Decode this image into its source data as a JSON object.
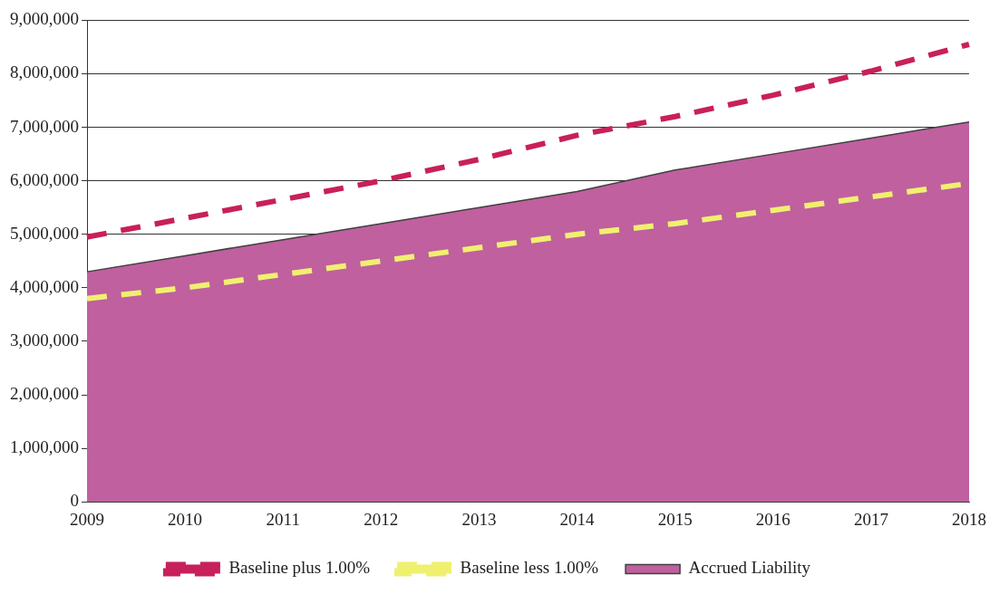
{
  "chart_data": {
    "type": "area",
    "categories": [
      "2009",
      "2010",
      "2011",
      "2012",
      "2013",
      "2014",
      "2015",
      "2016",
      "2017",
      "2018"
    ],
    "series": [
      {
        "name": "Accrued Liability",
        "type": "area",
        "color": "#c0609f",
        "values": [
          4300000,
          4600000,
          4900000,
          5200000,
          5500000,
          5800000,
          6200000,
          6500000,
          6800000,
          7100000
        ]
      },
      {
        "name": "Baseline plus 1.00%",
        "type": "line",
        "color": "#c8205a",
        "line_style": "dashed",
        "values": [
          4950000,
          5300000,
          5650000,
          6000000,
          6400000,
          6850000,
          7200000,
          7600000,
          8050000,
          8550000
        ]
      },
      {
        "name": "Baseline less 1.00%",
        "type": "line",
        "color": "#f0f070",
        "line_style": "dashed",
        "values": [
          3800000,
          4000000,
          4250000,
          4500000,
          4750000,
          5000000,
          5200000,
          5450000,
          5700000,
          5950000
        ]
      }
    ],
    "ylim": [
      0,
      9000000
    ],
    "yticks": [
      0,
      {
        "value": 1000000,
        "label": "1,000,000"
      },
      {
        "value": 2000000,
        "label": "2,000,000"
      },
      {
        "value": 3000000,
        "label": "3,000,000"
      },
      {
        "value": 4000000,
        "label": "4,000,000"
      },
      {
        "value": 5000000,
        "label": "5,000,000"
      },
      {
        "value": 6000000,
        "label": "6,000,000"
      },
      {
        "value": 7000000,
        "label": "7,000,000"
      },
      {
        "value": 8000000,
        "label": "8,000,000"
      },
      {
        "value": 9000000,
        "label": "9,000,000"
      }
    ],
    "grid": "y",
    "legend": "bottom",
    "marker": "none"
  }
}
